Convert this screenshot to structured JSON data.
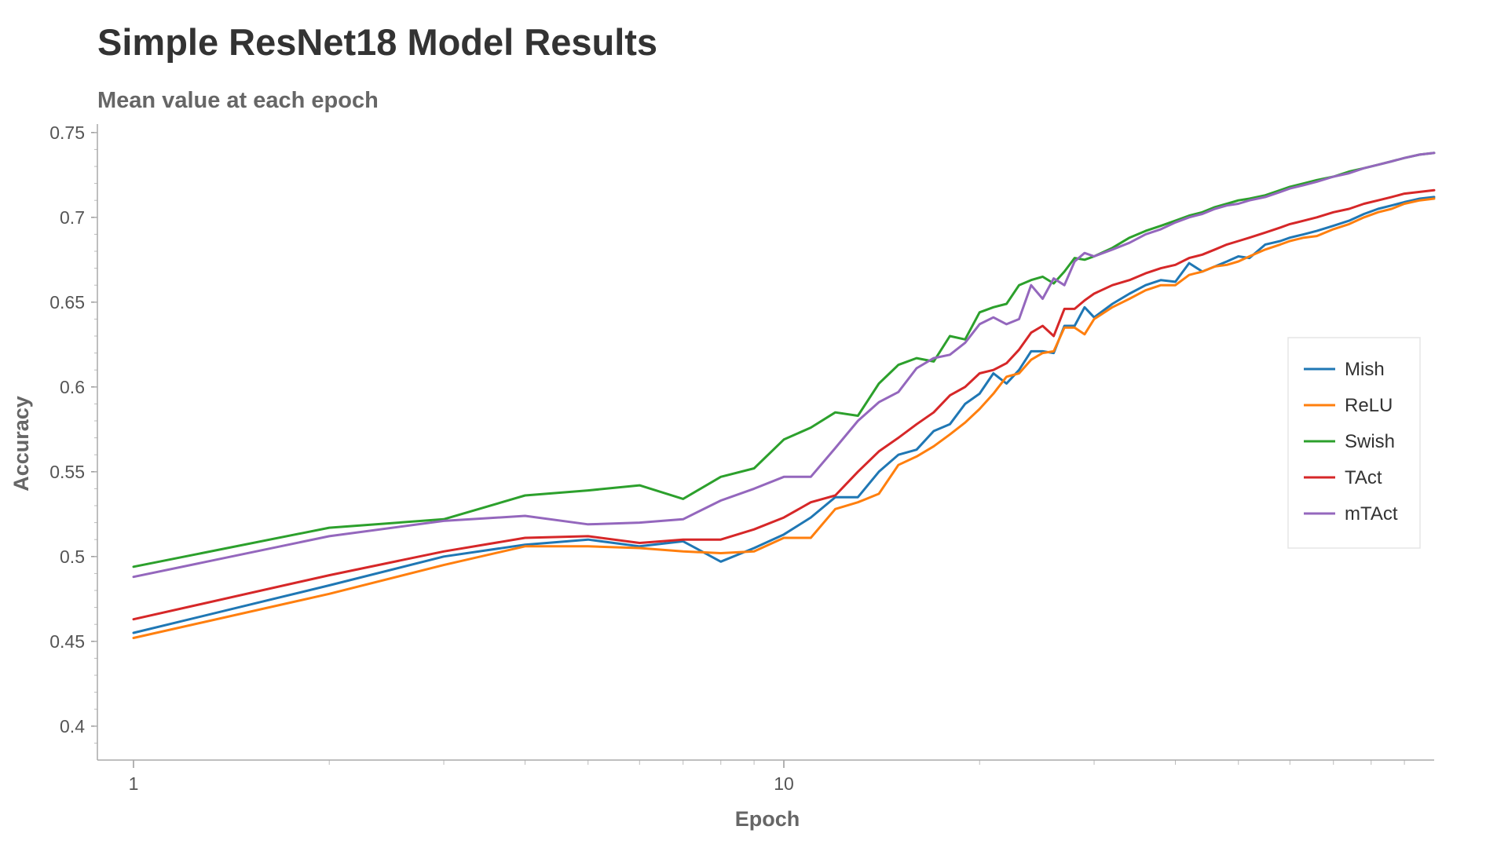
{
  "chart_data": {
    "type": "line",
    "title": "Simple ResNet18 Model Results",
    "subtitle": "Mean value at each epoch",
    "xlabel": "Epoch",
    "ylabel": "Accuracy",
    "xscale": "log",
    "xlim": [
      0.88,
      100
    ],
    "ylim": [
      0.38,
      0.755
    ],
    "xticks": [
      {
        "value": 1,
        "label": "1"
      },
      {
        "value": 10,
        "label": "10"
      }
    ],
    "yticks": [
      {
        "value": 0.4,
        "label": "0.4"
      },
      {
        "value": 0.45,
        "label": "0.45"
      },
      {
        "value": 0.5,
        "label": "0.5"
      },
      {
        "value": 0.55,
        "label": "0.55"
      },
      {
        "value": 0.6,
        "label": "0.6"
      },
      {
        "value": 0.65,
        "label": "0.65"
      },
      {
        "value": 0.7,
        "label": "0.7"
      },
      {
        "value": 0.75,
        "label": "0.75"
      }
    ],
    "legend_position": "right",
    "series": [
      {
        "name": "Mish",
        "color": "#1f77b4",
        "points": [
          [
            1,
            0.455
          ],
          [
            2,
            0.483
          ],
          [
            3,
            0.5
          ],
          [
            4,
            0.507
          ],
          [
            5,
            0.51
          ],
          [
            6,
            0.506
          ],
          [
            7,
            0.509
          ],
          [
            8,
            0.497
          ],
          [
            9,
            0.505
          ],
          [
            10,
            0.513
          ],
          [
            11,
            0.523
          ],
          [
            12,
            0.535
          ],
          [
            13,
            0.535
          ],
          [
            14,
            0.55
          ],
          [
            15,
            0.56
          ],
          [
            16,
            0.563
          ],
          [
            17,
            0.574
          ],
          [
            18,
            0.578
          ],
          [
            19,
            0.59
          ],
          [
            20,
            0.596
          ],
          [
            21,
            0.608
          ],
          [
            22,
            0.602
          ],
          [
            23,
            0.61
          ],
          [
            24,
            0.621
          ],
          [
            25,
            0.621
          ],
          [
            26,
            0.62
          ],
          [
            27,
            0.636
          ],
          [
            28,
            0.636
          ],
          [
            29,
            0.647
          ],
          [
            30,
            0.641
          ],
          [
            32,
            0.649
          ],
          [
            34,
            0.655
          ],
          [
            36,
            0.66
          ],
          [
            38,
            0.663
          ],
          [
            40,
            0.662
          ],
          [
            42,
            0.673
          ],
          [
            44,
            0.668
          ],
          [
            46,
            0.671
          ],
          [
            48,
            0.674
          ],
          [
            50,
            0.677
          ],
          [
            52,
            0.676
          ],
          [
            55,
            0.684
          ],
          [
            58,
            0.686
          ],
          [
            60,
            0.688
          ],
          [
            63,
            0.69
          ],
          [
            66,
            0.692
          ],
          [
            70,
            0.695
          ],
          [
            74,
            0.698
          ],
          [
            78,
            0.702
          ],
          [
            82,
            0.705
          ],
          [
            86,
            0.707
          ],
          [
            90,
            0.709
          ],
          [
            95,
            0.711
          ],
          [
            100,
            0.712
          ]
        ]
      },
      {
        "name": "ReLU",
        "color": "#ff7f0e",
        "points": [
          [
            1,
            0.452
          ],
          [
            2,
            0.478
          ],
          [
            3,
            0.495
          ],
          [
            4,
            0.506
          ],
          [
            5,
            0.506
          ],
          [
            6,
            0.505
          ],
          [
            7,
            0.503
          ],
          [
            8,
            0.502
          ],
          [
            9,
            0.503
          ],
          [
            10,
            0.511
          ],
          [
            11,
            0.511
          ],
          [
            12,
            0.528
          ],
          [
            13,
            0.532
          ],
          [
            14,
            0.537
          ],
          [
            15,
            0.554
          ],
          [
            16,
            0.559
          ],
          [
            17,
            0.565
          ],
          [
            18,
            0.572
          ],
          [
            19,
            0.579
          ],
          [
            20,
            0.587
          ],
          [
            21,
            0.596
          ],
          [
            22,
            0.606
          ],
          [
            23,
            0.608
          ],
          [
            24,
            0.616
          ],
          [
            25,
            0.62
          ],
          [
            26,
            0.621
          ],
          [
            27,
            0.635
          ],
          [
            28,
            0.635
          ],
          [
            29,
            0.631
          ],
          [
            30,
            0.64
          ],
          [
            32,
            0.647
          ],
          [
            34,
            0.652
          ],
          [
            36,
            0.657
          ],
          [
            38,
            0.66
          ],
          [
            40,
            0.66
          ],
          [
            42,
            0.666
          ],
          [
            44,
            0.668
          ],
          [
            46,
            0.671
          ],
          [
            48,
            0.672
          ],
          [
            50,
            0.674
          ],
          [
            52,
            0.677
          ],
          [
            55,
            0.681
          ],
          [
            58,
            0.684
          ],
          [
            60,
            0.686
          ],
          [
            63,
            0.688
          ],
          [
            66,
            0.689
          ],
          [
            70,
            0.693
          ],
          [
            74,
            0.696
          ],
          [
            78,
            0.7
          ],
          [
            82,
            0.703
          ],
          [
            86,
            0.705
          ],
          [
            90,
            0.708
          ],
          [
            95,
            0.71
          ],
          [
            100,
            0.711
          ]
        ]
      },
      {
        "name": "Swish",
        "color": "#2ca02c",
        "points": [
          [
            1,
            0.494
          ],
          [
            2,
            0.517
          ],
          [
            3,
            0.522
          ],
          [
            4,
            0.536
          ],
          [
            5,
            0.539
          ],
          [
            6,
            0.542
          ],
          [
            7,
            0.534
          ],
          [
            8,
            0.547
          ],
          [
            9,
            0.552
          ],
          [
            10,
            0.569
          ],
          [
            11,
            0.576
          ],
          [
            12,
            0.585
          ],
          [
            13,
            0.583
          ],
          [
            14,
            0.602
          ],
          [
            15,
            0.613
          ],
          [
            16,
            0.617
          ],
          [
            17,
            0.615
          ],
          [
            18,
            0.63
          ],
          [
            19,
            0.628
          ],
          [
            20,
            0.644
          ],
          [
            21,
            0.647
          ],
          [
            22,
            0.649
          ],
          [
            23,
            0.66
          ],
          [
            24,
            0.663
          ],
          [
            25,
            0.665
          ],
          [
            26,
            0.661
          ],
          [
            27,
            0.668
          ],
          [
            28,
            0.676
          ],
          [
            29,
            0.675
          ],
          [
            30,
            0.677
          ],
          [
            32,
            0.682
          ],
          [
            34,
            0.688
          ],
          [
            36,
            0.692
          ],
          [
            38,
            0.695
          ],
          [
            40,
            0.698
          ],
          [
            42,
            0.701
          ],
          [
            44,
            0.703
          ],
          [
            46,
            0.706
          ],
          [
            48,
            0.708
          ],
          [
            50,
            0.71
          ],
          [
            52,
            0.711
          ],
          [
            55,
            0.713
          ],
          [
            58,
            0.716
          ],
          [
            60,
            0.718
          ],
          [
            63,
            0.72
          ],
          [
            66,
            0.722
          ],
          [
            70,
            0.724
          ],
          [
            74,
            0.727
          ],
          [
            78,
            0.729
          ],
          [
            82,
            0.731
          ],
          [
            86,
            0.733
          ],
          [
            90,
            0.735
          ],
          [
            95,
            0.737
          ],
          [
            100,
            0.738
          ]
        ]
      },
      {
        "name": "TAct",
        "color": "#d62728",
        "points": [
          [
            1,
            0.463
          ],
          [
            2,
            0.489
          ],
          [
            3,
            0.503
          ],
          [
            4,
            0.511
          ],
          [
            5,
            0.512
          ],
          [
            6,
            0.508
          ],
          [
            7,
            0.51
          ],
          [
            8,
            0.51
          ],
          [
            9,
            0.516
          ],
          [
            10,
            0.523
          ],
          [
            11,
            0.532
          ],
          [
            12,
            0.536
          ],
          [
            13,
            0.55
          ],
          [
            14,
            0.562
          ],
          [
            15,
            0.57
          ],
          [
            16,
            0.578
          ],
          [
            17,
            0.585
          ],
          [
            18,
            0.595
          ],
          [
            19,
            0.6
          ],
          [
            20,
            0.608
          ],
          [
            21,
            0.61
          ],
          [
            22,
            0.614
          ],
          [
            23,
            0.622
          ],
          [
            24,
            0.632
          ],
          [
            25,
            0.636
          ],
          [
            26,
            0.63
          ],
          [
            27,
            0.646
          ],
          [
            28,
            0.646
          ],
          [
            29,
            0.651
          ],
          [
            30,
            0.655
          ],
          [
            32,
            0.66
          ],
          [
            34,
            0.663
          ],
          [
            36,
            0.667
          ],
          [
            38,
            0.67
          ],
          [
            40,
            0.672
          ],
          [
            42,
            0.676
          ],
          [
            44,
            0.678
          ],
          [
            46,
            0.681
          ],
          [
            48,
            0.684
          ],
          [
            50,
            0.686
          ],
          [
            52,
            0.688
          ],
          [
            55,
            0.691
          ],
          [
            58,
            0.694
          ],
          [
            60,
            0.696
          ],
          [
            63,
            0.698
          ],
          [
            66,
            0.7
          ],
          [
            70,
            0.703
          ],
          [
            74,
            0.705
          ],
          [
            78,
            0.708
          ],
          [
            82,
            0.71
          ],
          [
            86,
            0.712
          ],
          [
            90,
            0.714
          ],
          [
            95,
            0.715
          ],
          [
            100,
            0.716
          ]
        ]
      },
      {
        "name": "mTAct",
        "color": "#9467bd",
        "points": [
          [
            1,
            0.488
          ],
          [
            2,
            0.512
          ],
          [
            3,
            0.521
          ],
          [
            4,
            0.524
          ],
          [
            5,
            0.519
          ],
          [
            6,
            0.52
          ],
          [
            7,
            0.522
          ],
          [
            8,
            0.533
          ],
          [
            9,
            0.54
          ],
          [
            10,
            0.547
          ],
          [
            11,
            0.547
          ],
          [
            12,
            0.564
          ],
          [
            13,
            0.58
          ],
          [
            14,
            0.591
          ],
          [
            15,
            0.597
          ],
          [
            16,
            0.611
          ],
          [
            17,
            0.617
          ],
          [
            18,
            0.619
          ],
          [
            19,
            0.626
          ],
          [
            20,
            0.637
          ],
          [
            21,
            0.641
          ],
          [
            22,
            0.637
          ],
          [
            23,
            0.64
          ],
          [
            24,
            0.66
          ],
          [
            25,
            0.652
          ],
          [
            26,
            0.664
          ],
          [
            27,
            0.66
          ],
          [
            28,
            0.674
          ],
          [
            29,
            0.679
          ],
          [
            30,
            0.677
          ],
          [
            32,
            0.681
          ],
          [
            34,
            0.685
          ],
          [
            36,
            0.69
          ],
          [
            38,
            0.693
          ],
          [
            40,
            0.697
          ],
          [
            42,
            0.7
          ],
          [
            44,
            0.702
          ],
          [
            46,
            0.705
          ],
          [
            48,
            0.707
          ],
          [
            50,
            0.708
          ],
          [
            52,
            0.71
          ],
          [
            55,
            0.712
          ],
          [
            58,
            0.715
          ],
          [
            60,
            0.717
          ],
          [
            63,
            0.719
          ],
          [
            66,
            0.721
          ],
          [
            70,
            0.724
          ],
          [
            74,
            0.726
          ],
          [
            78,
            0.729
          ],
          [
            82,
            0.731
          ],
          [
            86,
            0.733
          ],
          [
            90,
            0.735
          ],
          [
            95,
            0.737
          ],
          [
            100,
            0.738
          ]
        ]
      }
    ]
  }
}
